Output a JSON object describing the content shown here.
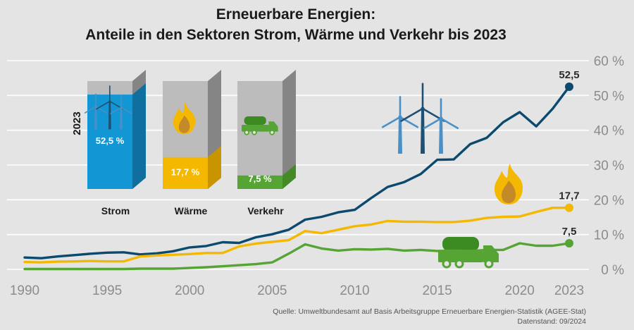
{
  "title_line1": "Erneuerbare Energien:",
  "title_line2": "Anteile in den Sektoren Strom, Wärme und Verkehr bis 2023",
  "source_line1": "Quelle: Umweltbundesamt auf Basis Arbeitsgruppe Erneuerbare Energien-Statistik (AGEE-Stat)",
  "source_line2": "Datenstand: 09/2024",
  "colors": {
    "strom": "#0b4a6e",
    "waerme": "#f5b800",
    "verkehr": "#56a434",
    "strom_bar": "#1296d4",
    "background": "#e4e4e4",
    "grid": "#ffffff"
  },
  "chart_data": {
    "type": "line",
    "title": "Erneuerbare Energien: Anteile in den Sektoren Strom, Wärme und Verkehr bis 2023",
    "xlabel": "",
    "ylabel": "",
    "x_ticks": [
      "1990",
      "1995",
      "2000",
      "2005",
      "2010",
      "2015",
      "2020",
      "2023"
    ],
    "y_ticks": [
      "0 %",
      "10 %",
      "20 %",
      "30 %",
      "40 %",
      "50 %",
      "60 %"
    ],
    "ylim": [
      0,
      60
    ],
    "xlim": [
      1990,
      2023
    ],
    "grid": true,
    "series": [
      {
        "name": "Strom",
        "end_label": "52,5",
        "x": [
          1990,
          1991,
          1992,
          1993,
          1994,
          1995,
          1996,
          1997,
          1998,
          1999,
          2000,
          2001,
          2002,
          2003,
          2004,
          2005,
          2006,
          2007,
          2008,
          2009,
          2010,
          2011,
          2012,
          2013,
          2014,
          2015,
          2016,
          2017,
          2018,
          2019,
          2020,
          2021,
          2022,
          2023
        ],
        "values": [
          3.4,
          3.2,
          3.7,
          4.1,
          4.5,
          4.8,
          4.9,
          4.3,
          4.6,
          5.2,
          6.3,
          6.7,
          7.8,
          7.6,
          9.2,
          10.1,
          11.4,
          14.3,
          15.1,
          16.4,
          17.1,
          20.5,
          23.7,
          25.1,
          27.4,
          31.5,
          31.6,
          36.0,
          37.8,
          42.3,
          45.2,
          41.1,
          46.2,
          52.5
        ]
      },
      {
        "name": "Wärme",
        "end_label": "17,7",
        "x": [
          1990,
          1991,
          1992,
          1993,
          1994,
          1995,
          1996,
          1997,
          1998,
          1999,
          2000,
          2001,
          2002,
          2003,
          2004,
          2005,
          2006,
          2007,
          2008,
          2009,
          2010,
          2011,
          2012,
          2013,
          2014,
          2015,
          2016,
          2017,
          2018,
          2019,
          2020,
          2021,
          2022,
          2023
        ],
        "values": [
          2.1,
          2.0,
          2.2,
          2.3,
          2.4,
          2.3,
          2.3,
          3.7,
          4.0,
          4.2,
          4.4,
          4.7,
          4.7,
          6.6,
          7.4,
          7.9,
          8.4,
          11.0,
          10.4,
          11.4,
          12.4,
          12.9,
          13.9,
          13.7,
          13.7,
          13.6,
          13.6,
          14.0,
          14.8,
          15.1,
          15.2,
          16.5,
          17.7,
          17.7
        ]
      },
      {
        "name": "Verkehr",
        "end_label": "7,5",
        "x": [
          1990,
          1991,
          1992,
          1993,
          1994,
          1995,
          1996,
          1997,
          1998,
          1999,
          2000,
          2001,
          2002,
          2003,
          2004,
          2005,
          2006,
          2007,
          2008,
          2009,
          2010,
          2011,
          2012,
          2013,
          2014,
          2015,
          2016,
          2017,
          2018,
          2019,
          2020,
          2021,
          2022,
          2023
        ],
        "values": [
          0.1,
          0.1,
          0.1,
          0.1,
          0.1,
          0.1,
          0.1,
          0.2,
          0.2,
          0.2,
          0.4,
          0.6,
          0.9,
          1.2,
          1.5,
          2.0,
          4.5,
          7.2,
          6.0,
          5.4,
          5.8,
          5.7,
          5.9,
          5.4,
          5.6,
          5.3,
          5.4,
          5.3,
          5.6,
          5.6,
          7.5,
          6.8,
          6.8,
          7.5
        ]
      }
    ],
    "bars_2023": {
      "label": "2023",
      "items": [
        {
          "category": "Strom",
          "value": 52.5,
          "label": "52,5 %",
          "icon": "wind-turbines-icon"
        },
        {
          "category": "Wärme",
          "value": 17.7,
          "label": "17,7 %",
          "icon": "flame-icon"
        },
        {
          "category": "Verkehr",
          "value": 7.5,
          "label": "7,5 %",
          "icon": "truck-icon"
        }
      ]
    }
  }
}
